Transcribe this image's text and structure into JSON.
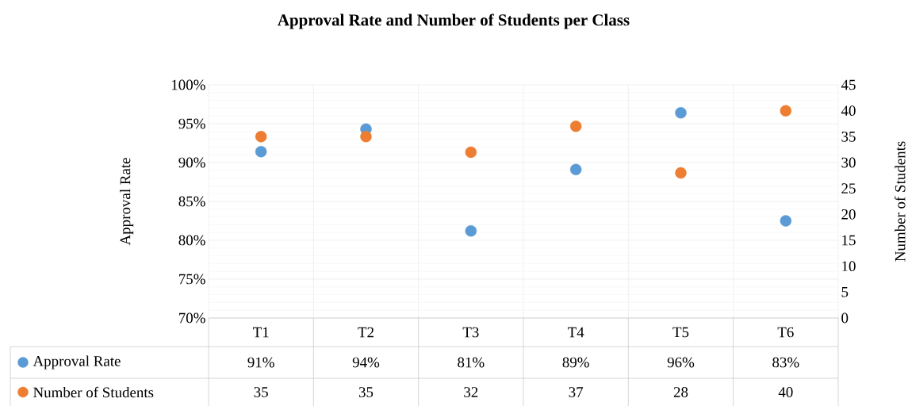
{
  "chart_data": {
    "type": "scatter",
    "title": "Approval Rate and Number of Students per Class",
    "ylabel": "Approval Rate",
    "y2label": "Number of Students",
    "categories": [
      "T1",
      "T2",
      "T3",
      "T4",
      "T5",
      "T6"
    ],
    "series": [
      {
        "name": "Approval Rate",
        "color": "#5b9bd5",
        "values": [
          91.4,
          94.3,
          81.2,
          89.1,
          96.4,
          82.5
        ],
        "value_labels": [
          "91%",
          "94%",
          "81%",
          "89%",
          "96%",
          "83%"
        ]
      },
      {
        "name": "Number of Students",
        "color": "#ed7d31",
        "axis": "y2",
        "values": [
          35,
          35,
          32,
          37,
          28,
          40
        ],
        "value_labels": [
          "35",
          "35",
          "32",
          "37",
          "28",
          "40"
        ]
      }
    ],
    "ylim": [
      70,
      100
    ],
    "yticks": [
      {
        "value": 70,
        "label": "70%"
      },
      {
        "value": 75,
        "label": "75%"
      },
      {
        "value": 80,
        "label": "80%"
      },
      {
        "value": 85,
        "label": "85%"
      },
      {
        "value": 90,
        "label": "90%"
      },
      {
        "value": 95,
        "label": "95%"
      },
      {
        "value": 100,
        "label": "100%"
      }
    ],
    "y2lim": [
      0,
      45
    ],
    "y2ticks": [
      0,
      5,
      10,
      15,
      20,
      25,
      30,
      35,
      40,
      45
    ],
    "grid": true,
    "legend": "bottom",
    "marker": "circle"
  }
}
